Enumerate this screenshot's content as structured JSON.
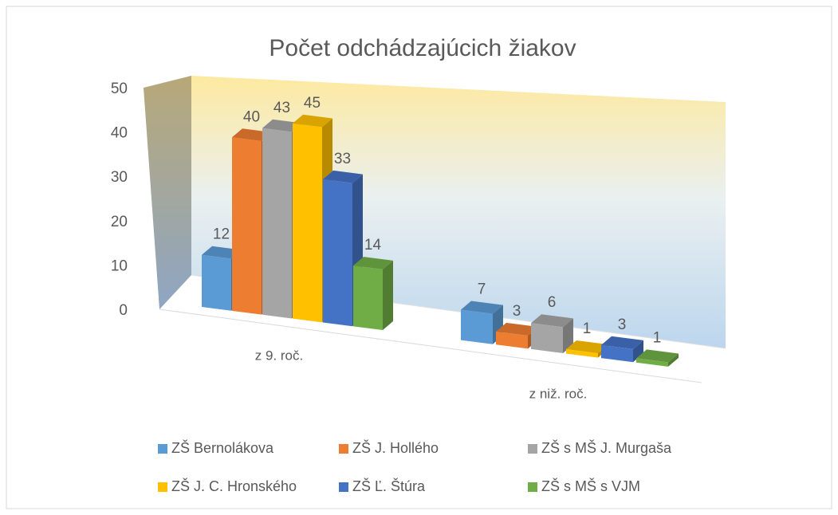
{
  "chart_data": {
    "type": "bar3d",
    "title": "Počet odchádzajúcich žiakov",
    "categories": [
      "z 9. roč.",
      "z niž. roč."
    ],
    "series": [
      {
        "name": "ZŠ Bernolákova",
        "color": "#5b9bd5",
        "values": [
          12,
          7
        ]
      },
      {
        "name": "ZŠ J. Hollého",
        "color": "#ed7d31",
        "values": [
          40,
          3
        ]
      },
      {
        "name": "ZŠ s MŠ J. Murgaša",
        "color": "#a5a5a5",
        "values": [
          43,
          6
        ]
      },
      {
        "name": "ZŠ J. C. Hronského",
        "color": "#ffc000",
        "values": [
          45,
          1
        ]
      },
      {
        "name": "ZŠ Ľ. Štúra",
        "color": "#4472c4",
        "values": [
          33,
          3
        ]
      },
      {
        "name": "ZŠ s MŠ s VJM",
        "color": "#70ad47",
        "values": [
          14,
          1
        ]
      }
    ],
    "ylim": [
      0,
      50
    ],
    "yticks": [
      0,
      10,
      20,
      30,
      40,
      50
    ],
    "legend": "bottom"
  }
}
